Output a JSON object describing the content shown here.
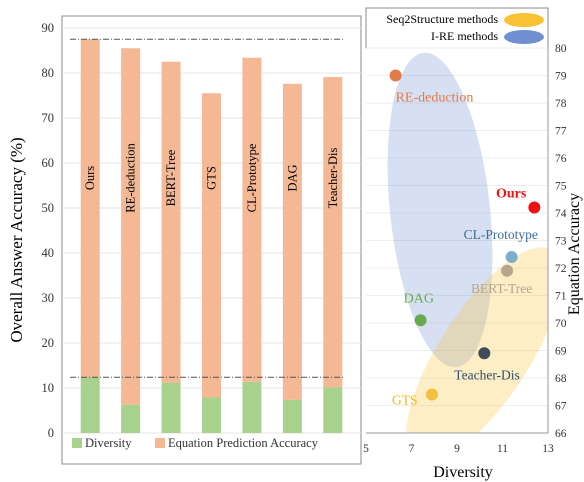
{
  "chart_data": [
    {
      "type": "bar",
      "categories": [
        "Ours",
        "RE-deduction",
        "BERT-Tree",
        "GTS",
        "CL-Prototype",
        "DAG",
        "Teacher-Dis"
      ],
      "series": [
        {
          "name": "Diversity",
          "values": [
            12.4,
            6.3,
            11.2,
            7.9,
            11.4,
            7.4,
            10.2
          ]
        },
        {
          "name": "Equation Prediction Accuracy",
          "values": [
            87.5,
            85.5,
            82.5,
            75.5,
            83.4,
            77.6,
            79.1
          ]
        }
      ],
      "ylabel": "Overall Answer Accuracy (%)",
      "ylim": [
        0,
        90
      ],
      "yticks": [
        0,
        10,
        20,
        30,
        40,
        50,
        60,
        70,
        80,
        90
      ],
      "reference_lines": [
        87.5,
        12.4
      ],
      "legend_position": "bottom",
      "colors": {
        "Diversity": "#a9d18e",
        "Equation Prediction Accuracy": "#f4b895"
      }
    },
    {
      "type": "scatter",
      "xlabel": "Diversity",
      "ylabel": "Equation Accuracy",
      "xlim": [
        5,
        13
      ],
      "ylim": [
        66,
        80
      ],
      "xticks": [
        5,
        7,
        9,
        11,
        13
      ],
      "yticks": [
        66,
        67,
        68,
        69,
        70,
        71,
        72,
        73,
        74,
        75,
        76,
        77,
        78,
        79,
        80
      ],
      "points": [
        {
          "label": "RE-deduction",
          "x": 6.3,
          "y": 79.0,
          "color": "#e07b4a"
        },
        {
          "label": "Ours",
          "x": 12.4,
          "y": 74.2,
          "color": "#ee1111"
        },
        {
          "label": "CL-Prototype",
          "x": 11.4,
          "y": 72.4,
          "color": "#7bafc9"
        },
        {
          "label": "BERT-Tree",
          "x": 11.2,
          "y": 71.9,
          "color": "#b8a58f"
        },
        {
          "label": "DAG",
          "x": 7.4,
          "y": 70.1,
          "color": "#6aa84f"
        },
        {
          "label": "Teacher-Dis",
          "x": 10.2,
          "y": 68.9,
          "color": "#404a58"
        },
        {
          "label": "GTS",
          "x": 7.9,
          "y": 67.4,
          "color": "#f5c040"
        }
      ],
      "legend": [
        {
          "label": "Seq2Structure methods",
          "color": "#f9c234"
        },
        {
          "label": "I-RE methods",
          "color": "#6f8fd0"
        }
      ],
      "legend_position": "top-right"
    }
  ]
}
